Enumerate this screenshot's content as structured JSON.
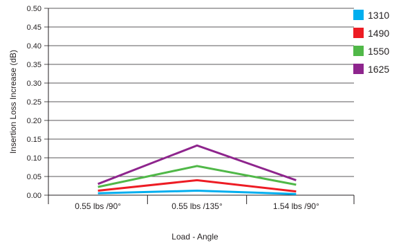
{
  "chart_data": {
    "type": "line",
    "title": "",
    "xlabel": "Load - Angle",
    "ylabel": "Insertion Loss Increase (dB)",
    "categories": [
      "0.55 lbs /90°",
      "0.55 lbs /135°",
      "1.54 lbs /90°"
    ],
    "ylim": [
      0,
      0.5
    ],
    "yticks": [
      "0.00",
      "0.05",
      "0.10",
      "0.15",
      "0.20",
      "0.25",
      "0.30",
      "0.35",
      "0.40",
      "0.45",
      "0.50"
    ],
    "grid": "horizontal",
    "legend_position": "right",
    "series": [
      {
        "name": "1310",
        "color": "#00aeef",
        "values": [
          0.005,
          0.012,
          0.003
        ]
      },
      {
        "name": "1490",
        "color": "#ed1c24",
        "values": [
          0.012,
          0.04,
          0.01
        ]
      },
      {
        "name": "1550",
        "color": "#50b848",
        "values": [
          0.022,
          0.078,
          0.028
        ]
      },
      {
        "name": "1625",
        "color": "#8e258d",
        "values": [
          0.03,
          0.133,
          0.04
        ]
      }
    ]
  }
}
